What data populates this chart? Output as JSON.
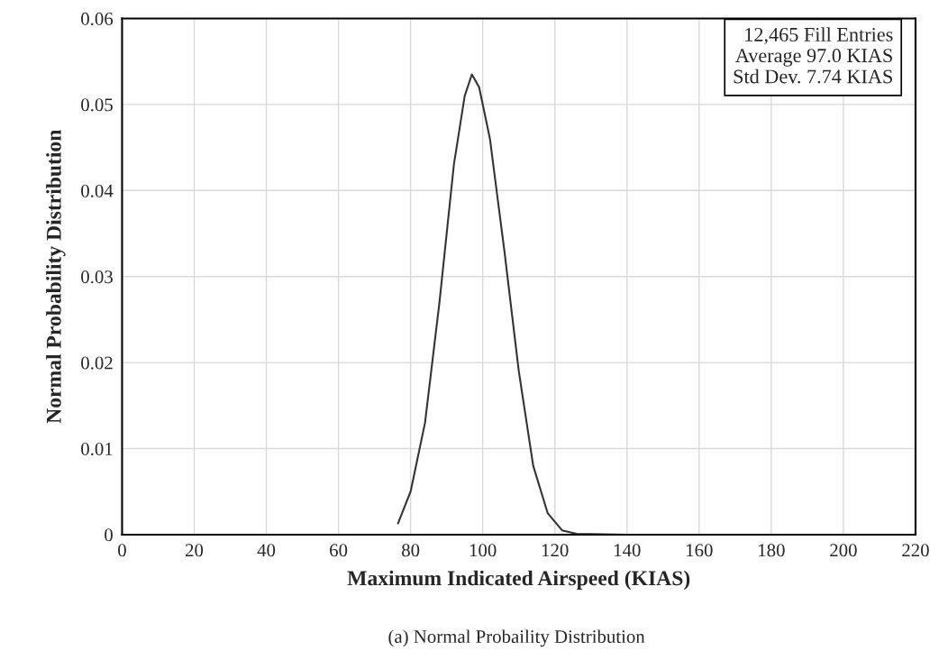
{
  "chart_data": {
    "type": "line",
    "xlabel": "Maximum Indicated Airspeed (KIAS)",
    "ylabel": "Normal Probability Distribution",
    "x": [
      76.5,
      80,
      84,
      88,
      92,
      95,
      97,
      99,
      102,
      106,
      110,
      114,
      118,
      122,
      126,
      140,
      193
    ],
    "series": [
      {
        "color": "#333333",
        "values": [
          0.0013,
          0.005,
          0.013,
          0.027,
          0.043,
          0.051,
          0.0535,
          0.052,
          0.046,
          0.033,
          0.019,
          0.008,
          0.0025,
          0.0005,
          0.0001,
          0,
          0
        ]
      }
    ],
    "xlim": [
      0,
      220
    ],
    "xticks": [
      0,
      20,
      40,
      60,
      80,
      100,
      120,
      140,
      160,
      180,
      200,
      220
    ],
    "ylim": [
      0,
      0.06
    ],
    "yticks": [
      0,
      0.01,
      0.02,
      0.03,
      0.04,
      0.05,
      0.06
    ],
    "grid": true,
    "marker": "none",
    "line_style": "solid",
    "annotations": [
      "12,465 Fill Entries\nAverage 97.0 KIAS\nStd Dev. 7.74 KIAS",
      "(a) Normal Probaility Distribution"
    ]
  }
}
